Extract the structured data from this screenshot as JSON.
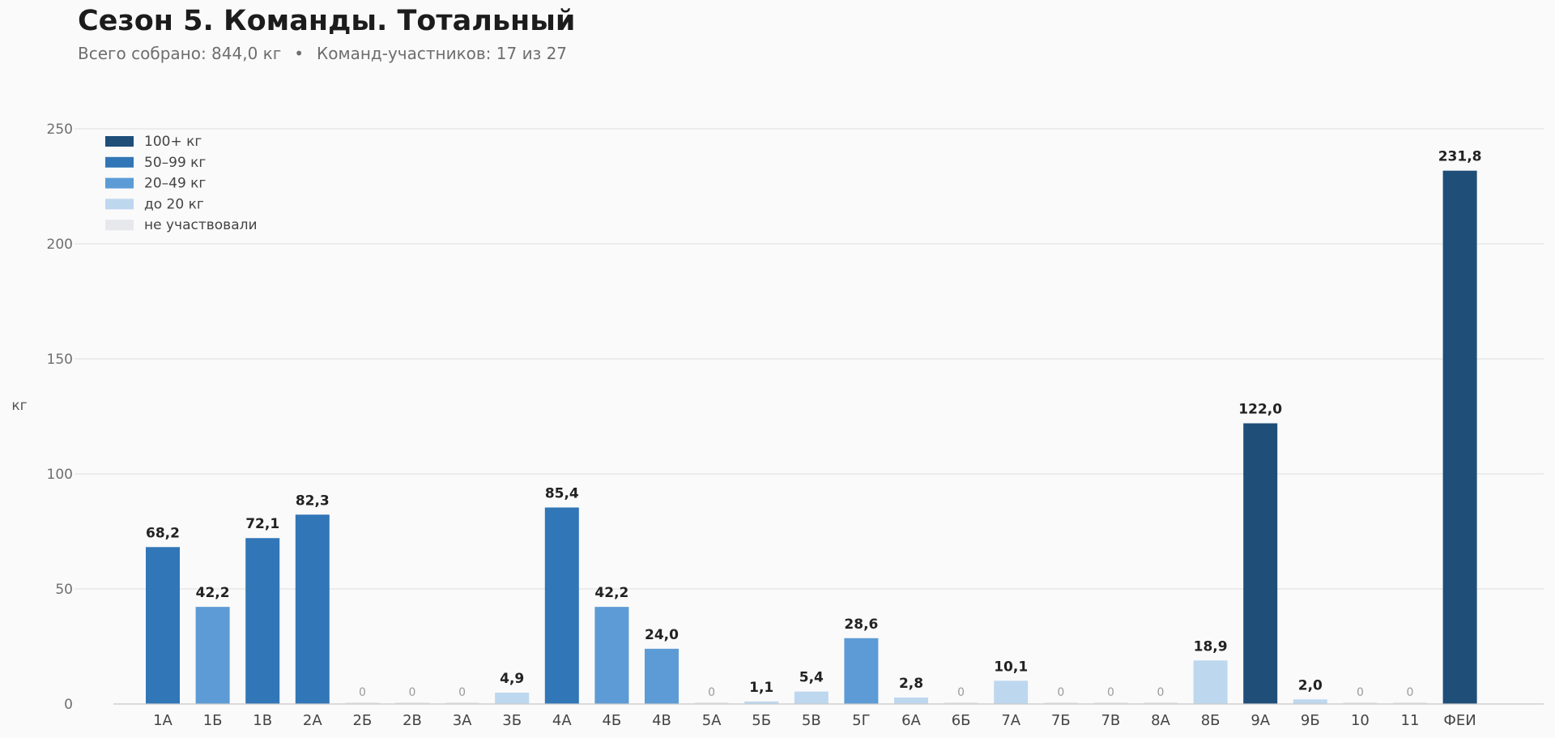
{
  "header": {
    "title": "Сезон 5. Команды. Тотальный",
    "total_text": "Всего собрано: 844,0 кг",
    "separator": "•",
    "teams_text": "Команд-участников: 17 из 27"
  },
  "chart_data": {
    "type": "bar",
    "title": "Сезон 5. Команды. Тотальный",
    "xlabel": "",
    "ylabel": "кг",
    "ylim": [
      0,
      250
    ],
    "yticks": [
      0,
      50,
      100,
      150,
      200,
      250
    ],
    "grid": true,
    "legend_position": "top-left",
    "legend": [
      {
        "label": "100+ кг",
        "color": "#1f4e79"
      },
      {
        "label": "50–99 кг",
        "color": "#3176b7"
      },
      {
        "label": "20–49 кг",
        "color": "#5c9bd5"
      },
      {
        "label": "до 20 кг",
        "color": "#bdd7ee"
      },
      {
        "label": "не участвовали",
        "color": "#e6e8ec"
      }
    ],
    "categories": [
      "1А",
      "1Б",
      "1В",
      "2А",
      "2Б",
      "2В",
      "3А",
      "3Б",
      "4А",
      "4Б",
      "4В",
      "5А",
      "5Б",
      "5В",
      "5Г",
      "6А",
      "6Б",
      "7А",
      "7Б",
      "7В",
      "8А",
      "8Б",
      "9А",
      "9Б",
      "10",
      "11",
      "ФЕИ"
    ],
    "values": [
      68.2,
      42.2,
      72.1,
      82.3,
      0,
      0,
      0,
      4.9,
      85.4,
      42.2,
      24.0,
      0,
      1.1,
      5.4,
      28.6,
      2.8,
      0,
      10.1,
      0,
      0,
      0,
      18.9,
      122.0,
      2.0,
      0,
      0,
      231.8
    ],
    "value_labels": [
      "68,2",
      "42,2",
      "72,1",
      "82,3",
      "0",
      "0",
      "0",
      "4,9",
      "85,4",
      "42,2",
      "24,0",
      "0",
      "1,1",
      "5,4",
      "28,6",
      "2,8",
      "0",
      "10,1",
      "0",
      "0",
      "0",
      "18,9",
      "122,0",
      "2,0",
      "0",
      "0",
      "231,8"
    ]
  }
}
